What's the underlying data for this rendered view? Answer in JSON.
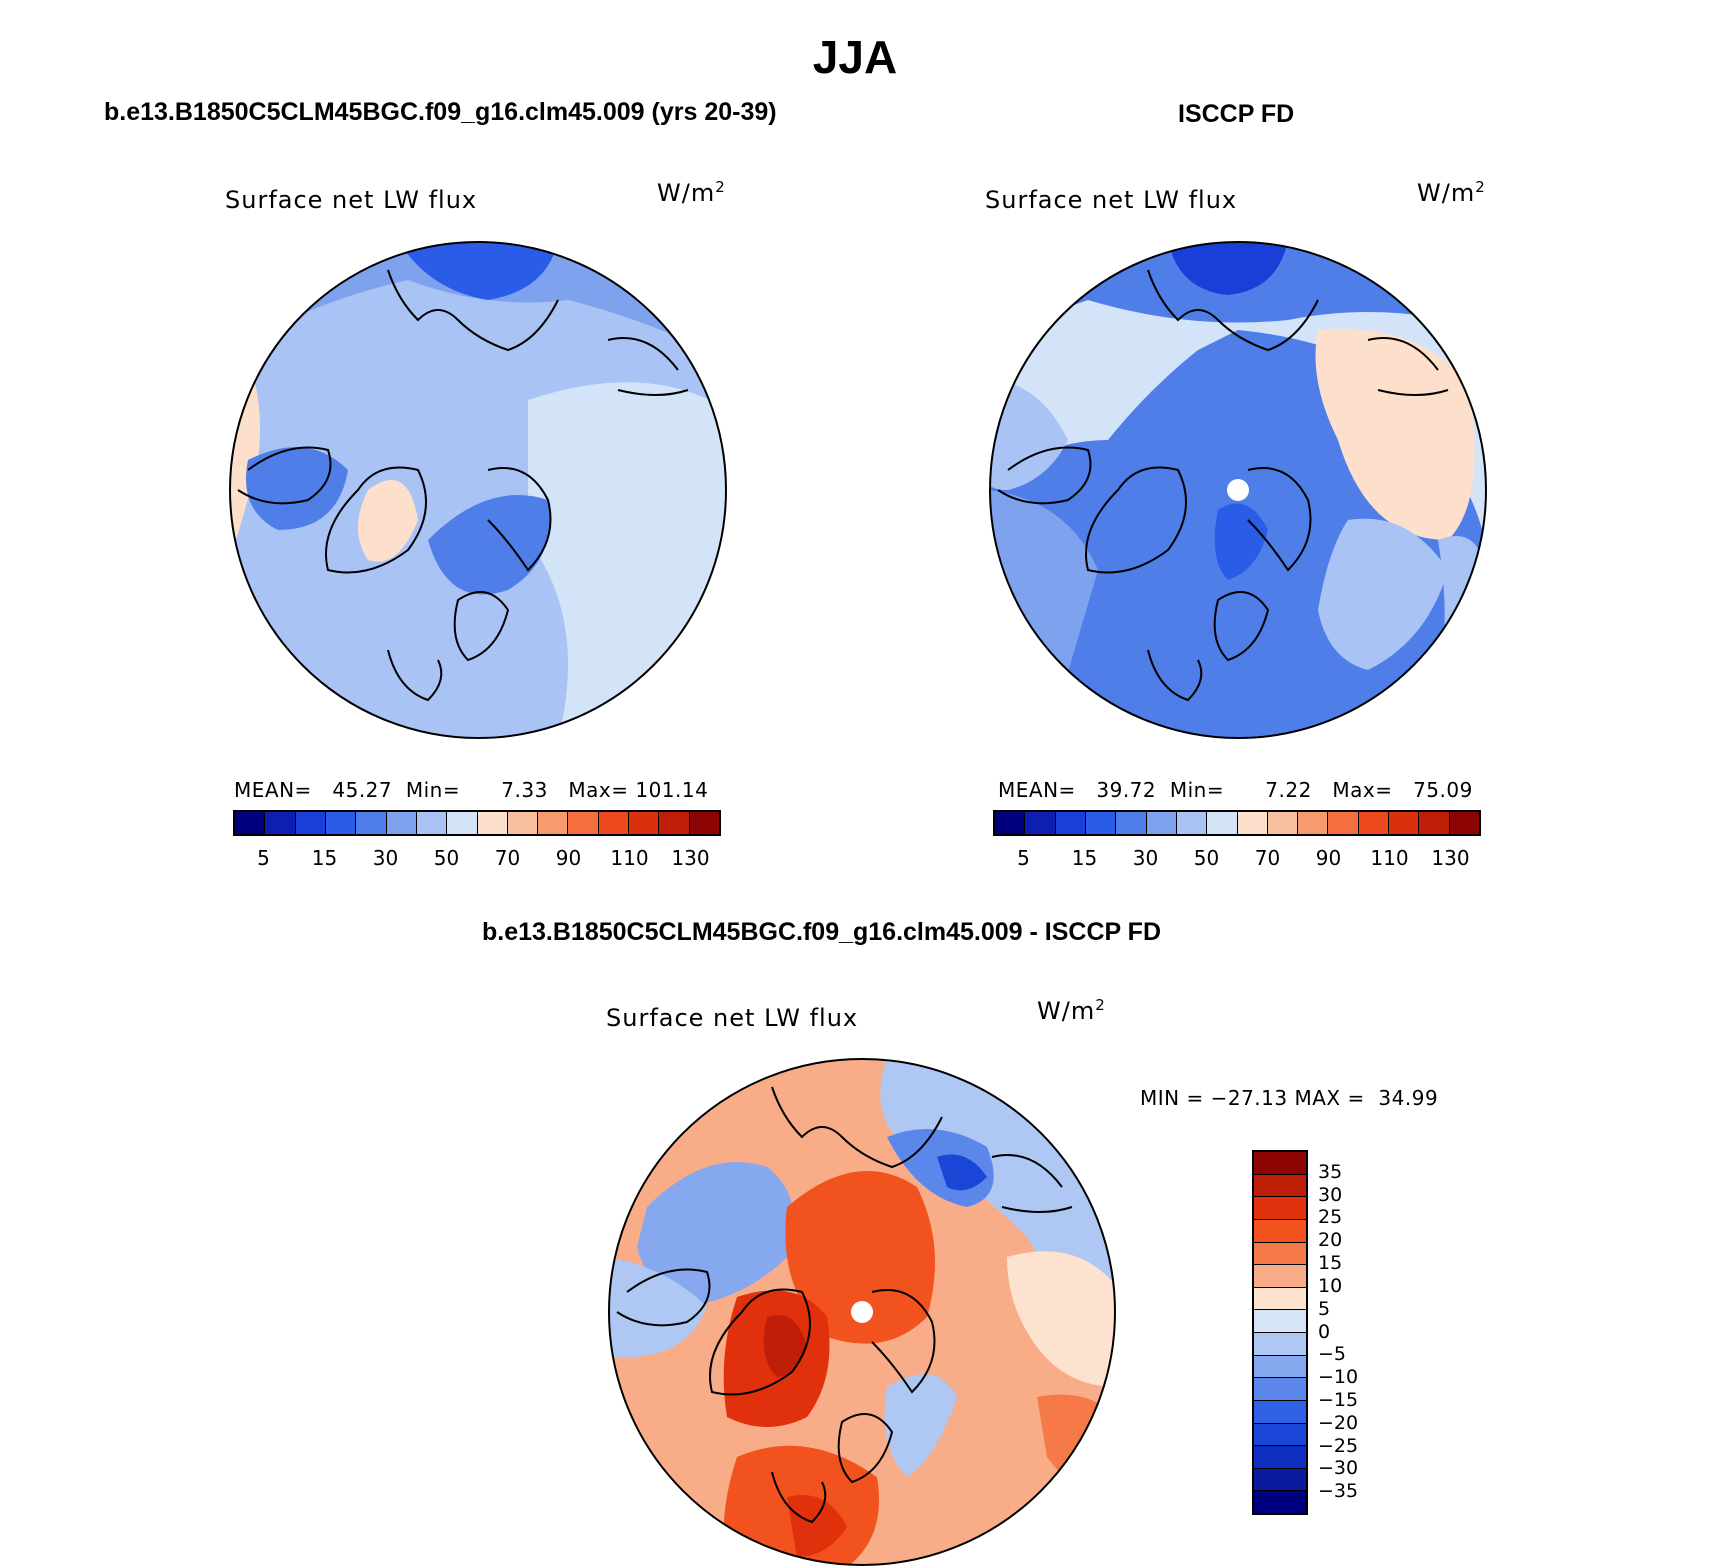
{
  "main_title": "JJA",
  "panels": [
    {
      "id": "model",
      "title": "b.e13.B1850C5CLM45BGC.f09_g16.clm45.009 (yrs 20-39)",
      "subtitle": "Surface net LW flux",
      "units": "W/m",
      "units_sup": "2",
      "stats": {
        "mean_label": "MEAN=",
        "mean": "45.27",
        "min_label": "Min=",
        "min": "7.33",
        "max_label": "Max=",
        "max": "101.14"
      }
    },
    {
      "id": "obs",
      "title": "ISCCP FD",
      "subtitle": "Surface net LW flux",
      "units": "W/m",
      "units_sup": "2",
      "stats": {
        "mean_label": "MEAN=",
        "mean": "39.72",
        "min_label": "Min=",
        "min": "7.22",
        "max_label": "Max=",
        "max": "75.09"
      }
    },
    {
      "id": "diff",
      "title": "b.e13.B1850C5CLM45BGC.f09_g16.clm45.009 - ISCCP FD",
      "subtitle": "Surface net LW flux",
      "units": "W/m",
      "units_sup": "2",
      "stats_text": "MIN = −27.13 MAX =  34.99"
    }
  ],
  "colorbar_abs": {
    "colors": [
      "#00007f",
      "#0d1fb0",
      "#1a3fd8",
      "#2a5ce8",
      "#4f7ee8",
      "#7ea2ee",
      "#a9c3f4",
      "#d3e3f8",
      "#fde0cc",
      "#f9c0a0",
      "#f79a70",
      "#f56f3e",
      "#ec4a1c",
      "#d8310c",
      "#bf1f08",
      "#8c0404"
    ],
    "tick_labels": [
      "5",
      "15",
      "30",
      "50",
      "70",
      "90",
      "110",
      "130"
    ]
  },
  "colorbar_diff": {
    "colors": [
      "#8c0404",
      "#bf1f08",
      "#e0300c",
      "#f2521e",
      "#f57a48",
      "#f8ad88",
      "#fde2d0",
      "#d6e6f8",
      "#aec7f3",
      "#86a8ee",
      "#5b86ea",
      "#2f61e4",
      "#1a46d8",
      "#0e2ec0",
      "#091c9e",
      "#00007f"
    ],
    "tick_labels": [
      "35",
      "30",
      "25",
      "20",
      "15",
      "10",
      "5",
      "0",
      "−5",
      "−10",
      "−15",
      "−20",
      "−25",
      "−30",
      "−35"
    ]
  }
}
